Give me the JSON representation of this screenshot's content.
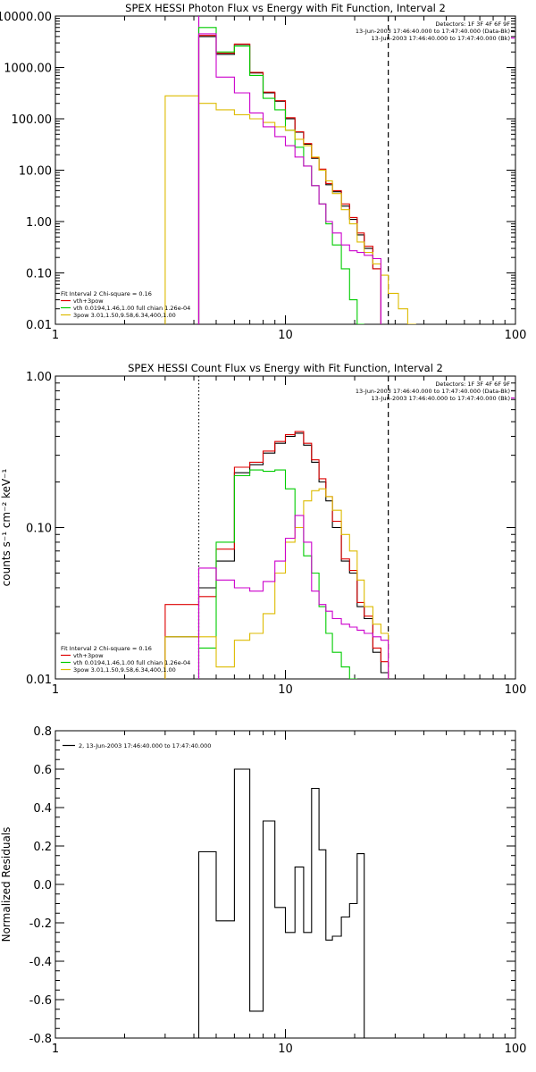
{
  "chart_data": [
    {
      "type": "line",
      "title": "SPEX HESSI Photon Flux vs Energy with Fit Function, Interval 2",
      "xlabel": "",
      "ylabel": "",
      "xscale": "log",
      "yscale": "log",
      "xlim": [
        1,
        100
      ],
      "ylim": [
        0.01,
        10000
      ],
      "x_ticks": [
        1,
        10,
        100
      ],
      "x_tick_labels": [
        "1",
        "10",
        "100"
      ],
      "y_ticks": [
        0.01,
        0.1,
        1,
        10,
        100,
        1000,
        10000
      ],
      "y_tick_labels": [
        "0.01",
        "0.10",
        "1.00",
        "10.00",
        "100.00",
        "1000.00",
        "10000.00"
      ],
      "info_lines": [
        "Detectors: 1F 3F 4F 6F 9F",
        "13-Jun-2003 17:46:40.000 to 17:47:40.000 (Data-Bk)",
        "13-Jun-2003 17:46:40.000 to 17:47:40.000 (Bk)"
      ],
      "fit_legend": [
        "Fit Interval 2   Chi-square = 0.16",
        "vth+3pow",
        "vth 0.0194,1.46,1.00  full chian 1.26e-04",
        "3pow 3.01,1.50,9.58,6.34,400,1.00"
      ],
      "vlines": [
        {
          "x": 4.2,
          "color": "#cc00cc",
          "style": "solid"
        },
        {
          "x": 28,
          "color": "#000000",
          "style": "dashed"
        }
      ],
      "edges": [
        3,
        4.2,
        5,
        6,
        7,
        8,
        9,
        10,
        11,
        12,
        13,
        14,
        15,
        16,
        17.5,
        19,
        20.5,
        22,
        24,
        26,
        28,
        31,
        34,
        37
      ],
      "series": [
        {
          "name": "Data-Bk",
          "color": "#000000",
          "y_start": 4.2,
          "values": [
            4000,
            1800,
            2800,
            780,
            320,
            220,
            100,
            55,
            32,
            17,
            10,
            5.2,
            3.8,
            2.0,
            1.1,
            0.55,
            0.3,
            0.12
          ]
        },
        {
          "name": "vth+3pow",
          "color": "#dd0000",
          "y_start": 4.2,
          "values": [
            4200,
            1900,
            2850,
            800,
            330,
            225,
            105,
            56,
            33,
            17.5,
            10.5,
            5.5,
            4.0,
            2.2,
            1.2,
            0.6,
            0.33,
            0.12
          ]
        },
        {
          "name": "vth",
          "color": "#00cc00",
          "y_start": 4.2,
          "values": [
            6000,
            2000,
            2600,
            700,
            250,
            150,
            60,
            28,
            12,
            5,
            2.2,
            0.9,
            0.35,
            0.12,
            0.03,
            0.01
          ]
        },
        {
          "name": "3pow",
          "color": "#ddbb00",
          "y_start": 3,
          "values": [
            280,
            200,
            150,
            120,
            100,
            85,
            70,
            60,
            40,
            30,
            18,
            10,
            6.2,
            3.5,
            1.7,
            0.9,
            0.4,
            0.25,
            0.15,
            0.09,
            0.04,
            0.02,
            0.01
          ]
        },
        {
          "name": "Bk",
          "color": "#cc00cc",
          "y_start": 4.2,
          "values": [
            4500,
            650,
            320,
            130,
            70,
            45,
            30,
            18,
            12,
            5,
            2.2,
            1.0,
            0.6,
            0.35,
            0.27,
            0.25,
            0.22,
            0.19
          ]
        }
      ]
    },
    {
      "type": "line",
      "title": "SPEX HESSI Count Flux vs Energy with Fit Function, Interval 2",
      "xlabel": "",
      "ylabel": "counts s⁻¹ cm⁻² keV⁻¹",
      "xscale": "log",
      "yscale": "log",
      "xlim": [
        1,
        100
      ],
      "ylim": [
        0.01,
        1
      ],
      "x_ticks": [
        1,
        10,
        100
      ],
      "x_tick_labels": [
        "1",
        "10",
        "100"
      ],
      "y_ticks": [
        0.01,
        0.1,
        1
      ],
      "y_tick_labels": [
        "0.01",
        "0.10",
        "1.00"
      ],
      "info_lines": [
        "Detectors: 1F 3F 4F 6F 9F",
        "13-Jun-2003 17:46:40.000 to 17:47:40.000 (Data-Bk)",
        "13-Jun-2003 17:46:40.000 to 17:47:40.000 (Bk)"
      ],
      "fit_legend": [
        "Fit Interval 2   Chi-square = 0.16",
        "vth+3pow",
        "vth 0.0194,1.46,1.00  full chian 1.26e-04",
        "3pow 3.01,1.50,9.58,6.34,400,1.00"
      ],
      "vlines": [
        {
          "x": 4.2,
          "color": "#000000",
          "style": "dotted"
        },
        {
          "x": 28,
          "color": "#000000",
          "style": "dashed"
        }
      ],
      "edges": [
        3,
        4.2,
        5,
        6,
        7,
        8,
        9,
        10,
        11,
        12,
        13,
        14,
        15,
        16,
        17.5,
        19,
        20.5,
        22,
        24,
        26,
        28
      ],
      "series": [
        {
          "name": "Data-Bk",
          "color": "#000000",
          "y_start": 3,
          "values": [
            0.019,
            0.04,
            0.06,
            0.23,
            0.26,
            0.31,
            0.36,
            0.4,
            0.42,
            0.35,
            0.27,
            0.2,
            0.15,
            0.1,
            0.06,
            0.05,
            0.03,
            0.025,
            0.015,
            0.011
          ]
        },
        {
          "name": "vth+3pow",
          "color": "#dd0000",
          "y_start": 3,
          "values": [
            0.031,
            0.035,
            0.072,
            0.25,
            0.27,
            0.32,
            0.37,
            0.41,
            0.43,
            0.36,
            0.28,
            0.21,
            0.16,
            0.11,
            0.062,
            0.052,
            0.032,
            0.026,
            0.016,
            0.013
          ]
        },
        {
          "name": "vth",
          "color": "#00cc00",
          "y_start": 4.2,
          "values": [
            0.016,
            0.08,
            0.22,
            0.24,
            0.235,
            0.24,
            0.18,
            0.1,
            0.065,
            0.05,
            0.03,
            0.02,
            0.015,
            0.012,
            0.01
          ]
        },
        {
          "name": "3pow",
          "color": "#ddbb00",
          "y_start": 3,
          "values": [
            0.019,
            0.019,
            0.012,
            0.018,
            0.02,
            0.027,
            0.05,
            0.08,
            0.1,
            0.15,
            0.175,
            0.18,
            0.16,
            0.13,
            0.09,
            0.07,
            0.045,
            0.03,
            0.023,
            0.02
          ]
        },
        {
          "name": "Bk",
          "color": "#cc00cc",
          "y_start": 4.2,
          "values": [
            0.054,
            0.045,
            0.04,
            0.038,
            0.044,
            0.06,
            0.085,
            0.12,
            0.08,
            0.038,
            0.031,
            0.028,
            0.025,
            0.023,
            0.022,
            0.021,
            0.02,
            0.019,
            0.018
          ]
        }
      ]
    },
    {
      "type": "line",
      "title": "",
      "xlabel": "",
      "ylabel": "Normalized Residuals",
      "xscale": "log",
      "yscale": "linear",
      "xlim": [
        1,
        100
      ],
      "ylim": [
        -0.8,
        0.8
      ],
      "x_ticks": [
        1,
        10,
        100
      ],
      "x_tick_labels": [
        "1",
        "10",
        "100"
      ],
      "y_ticks": [
        -0.8,
        -0.6,
        -0.4,
        -0.2,
        0.0,
        0.2,
        0.4,
        0.6,
        0.8
      ],
      "y_tick_labels": [
        "-0.8",
        "-0.6",
        "-0.4",
        "-0.2",
        "0.0",
        "0.2",
        "0.4",
        "0.6",
        "0.8"
      ],
      "legend": [
        "2, 13-Jun-2003 17:46:40.000 to 17:47:40.000"
      ],
      "edges": [
        4.2,
        5,
        6,
        7,
        8,
        9,
        10,
        11,
        12,
        13,
        14,
        15,
        16,
        17.5,
        19,
        20.5,
        22,
        24,
        26,
        28
      ],
      "series": [
        {
          "name": "2, 13-Jun-2003 17:46:40.000 to 17:47:40.000",
          "color": "#000000",
          "y_start": null,
          "values": [
            0.17,
            -0.19,
            0.6,
            -0.66,
            0.33,
            -0.12,
            -0.25,
            0.09,
            -0.25,
            0.5,
            0.18,
            -0.29,
            -0.27,
            -0.17,
            -0.1,
            0.16
          ]
        }
      ]
    }
  ]
}
